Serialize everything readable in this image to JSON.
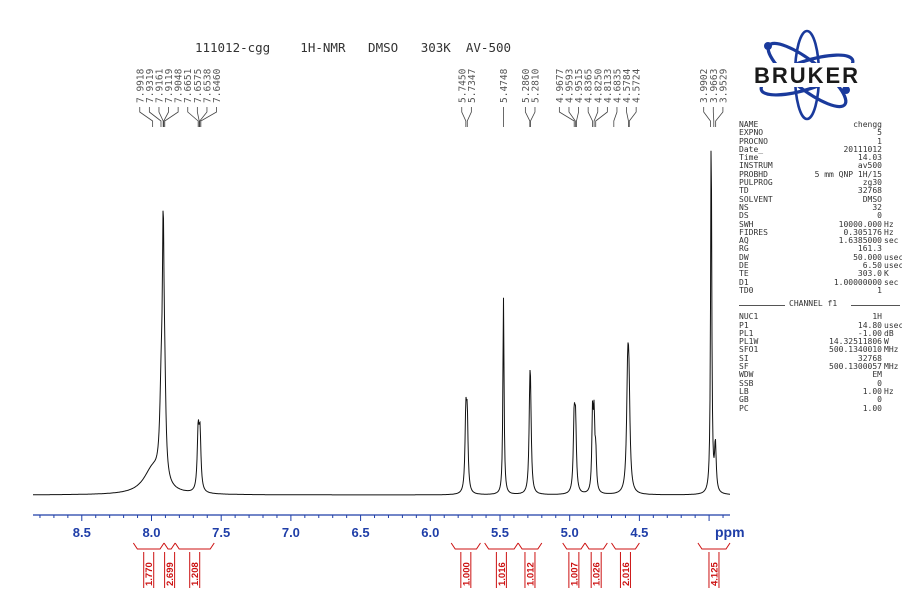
{
  "chart_data": {
    "type": "line",
    "title": "111012-cgg    1H-NMR   DMSO   303K  AV-500",
    "xlabel": "ppm",
    "xlim": [
      8.85,
      3.85
    ],
    "ylim": [
      0,
      1
    ],
    "x_ticks": [
      8.5,
      8.0,
      7.5,
      7.0,
      6.5,
      6.0,
      5.5,
      5.0,
      4.5
    ],
    "x_tick_labels": [
      "8.5",
      "8.0",
      "7.5",
      "7.0",
      "6.5",
      "6.0",
      "5.5",
      "5.0",
      "4.5"
    ],
    "grid": false,
    "baseline": 0.03,
    "peaks": [
      {
        "ppm": 7.99,
        "height": 0.07,
        "width": 0.08
      },
      {
        "ppm": 7.93,
        "height": 0.22,
        "width": 0.012
      },
      {
        "ppm": 7.916,
        "height": 0.58,
        "width": 0.007
      },
      {
        "ppm": 7.905,
        "height": 0.2,
        "width": 0.01
      },
      {
        "ppm": 7.665,
        "height": 0.16,
        "width": 0.008
      },
      {
        "ppm": 7.652,
        "height": 0.15,
        "width": 0.008
      },
      {
        "ppm": 5.745,
        "height": 0.2,
        "width": 0.007
      },
      {
        "ppm": 5.735,
        "height": 0.19,
        "width": 0.007
      },
      {
        "ppm": 5.475,
        "height": 0.54,
        "width": 0.005
      },
      {
        "ppm": 5.286,
        "height": 0.2,
        "width": 0.007
      },
      {
        "ppm": 5.281,
        "height": 0.19,
        "width": 0.007
      },
      {
        "ppm": 4.968,
        "height": 0.19,
        "width": 0.007
      },
      {
        "ppm": 4.958,
        "height": 0.18,
        "width": 0.007
      },
      {
        "ppm": 4.836,
        "height": 0.21,
        "width": 0.006
      },
      {
        "ppm": 4.825,
        "height": 0.19,
        "width": 0.006
      },
      {
        "ppm": 4.813,
        "height": 0.1,
        "width": 0.006
      },
      {
        "ppm": 4.584,
        "height": 0.28,
        "width": 0.009
      },
      {
        "ppm": 4.575,
        "height": 0.24,
        "width": 0.009
      },
      {
        "ppm": 3.985,
        "height": 1.0,
        "width": 0.005
      },
      {
        "ppm": 3.955,
        "height": 0.13,
        "width": 0.007
      }
    ],
    "peak_labels": [
      {
        "label": "7.9918",
        "ppm": 7.9918
      },
      {
        "label": "7.9319",
        "ppm": 7.9319
      },
      {
        "label": "7.9161",
        "ppm": 7.9161
      },
      {
        "label": "7.9119",
        "ppm": 7.9119
      },
      {
        "label": "7.9048",
        "ppm": 7.9048
      },
      {
        "label": "7.6651",
        "ppm": 7.6651
      },
      {
        "label": "7.6575",
        "ppm": 7.6575
      },
      {
        "label": "7.6538",
        "ppm": 7.6538
      },
      {
        "label": "7.6460",
        "ppm": 7.646
      },
      {
        "label": "5.7450",
        "ppm": 5.745
      },
      {
        "label": "5.7347",
        "ppm": 5.7347
      },
      {
        "label": "5.4748",
        "ppm": 5.4748
      },
      {
        "label": "5.2860",
        "ppm": 5.286
      },
      {
        "label": "5.2810",
        "ppm": 5.281
      },
      {
        "label": "4.9677",
        "ppm": 4.9677
      },
      {
        "label": "4.9593",
        "ppm": 4.9593
      },
      {
        "label": "4.9515",
        "ppm": 4.9515
      },
      {
        "label": "4.8365",
        "ppm": 4.8365
      },
      {
        "label": "4.8250",
        "ppm": 4.825
      },
      {
        "label": "4.8133",
        "ppm": 4.8133
      },
      {
        "label": "4.6835",
        "ppm": 4.6835
      },
      {
        "label": "4.5784",
        "ppm": 4.5784
      },
      {
        "label": "4.5724",
        "ppm": 4.5724
      },
      {
        "label": "3.9902",
        "ppm": 3.9902
      },
      {
        "label": "3.9663",
        "ppm": 3.9663
      },
      {
        "label": "3.9529",
        "ppm": 3.9529
      }
    ],
    "integrals": [
      {
        "value": "1.770",
        "from": 8.13,
        "to": 7.91
      },
      {
        "value": "2.699",
        "from": 7.91,
        "to": 7.83
      },
      {
        "value": "1.208",
        "from": 7.83,
        "to": 7.55
      },
      {
        "value": "1.000",
        "from": 5.85,
        "to": 5.64
      },
      {
        "value": "1.016",
        "from": 5.61,
        "to": 5.37
      },
      {
        "value": "1.012",
        "from": 5.37,
        "to": 5.2
      },
      {
        "value": "1.007",
        "from": 5.05,
        "to": 4.89
      },
      {
        "value": "1.026",
        "from": 4.89,
        "to": 4.73
      },
      {
        "value": "2.016",
        "from": 4.7,
        "to": 4.5
      },
      {
        "value": "4.125",
        "from": 4.08,
        "to": 3.85
      }
    ],
    "colors": {
      "spectrum": "#111111",
      "axis": "#1f3ea8",
      "integral": "#cc1111",
      "peak_label": "#555555"
    }
  },
  "logo": {
    "text": "BRUKER",
    "color": "#1a3a9c"
  },
  "params": [
    {
      "name": "NAME",
      "value": "chengg",
      "unit": ""
    },
    {
      "name": "EXPNO",
      "value": "5",
      "unit": ""
    },
    {
      "name": "PROCNO",
      "value": "1",
      "unit": ""
    },
    {
      "name": "Date_",
      "value": "20111012",
      "unit": ""
    },
    {
      "name": "Time",
      "value": "14.03",
      "unit": ""
    },
    {
      "name": "INSTRUM",
      "value": "av500",
      "unit": ""
    },
    {
      "name": "PROBHD",
      "value": "5 mm QNP 1H/15",
      "unit": ""
    },
    {
      "name": "PULPROG",
      "value": "zg30",
      "unit": ""
    },
    {
      "name": "TD",
      "value": "32768",
      "unit": ""
    },
    {
      "name": "SOLVENT",
      "value": "DMSO",
      "unit": ""
    },
    {
      "name": "NS",
      "value": "32",
      "unit": ""
    },
    {
      "name": "DS",
      "value": "0",
      "unit": ""
    },
    {
      "name": "SWH",
      "value": "10000.000",
      "unit": "Hz"
    },
    {
      "name": "FIDRES",
      "value": "0.305176",
      "unit": "Hz"
    },
    {
      "name": "AQ",
      "value": "1.6385000",
      "unit": "sec"
    },
    {
      "name": "RG",
      "value": "161.3",
      "unit": ""
    },
    {
      "name": "DW",
      "value": "50.000",
      "unit": "usec"
    },
    {
      "name": "DE",
      "value": "6.50",
      "unit": "usec"
    },
    {
      "name": "TE",
      "value": "303.0",
      "unit": "K"
    },
    {
      "name": "D1",
      "value": "1.00000000",
      "unit": "sec"
    },
    {
      "name": "TD0",
      "value": "1",
      "unit": ""
    }
  ],
  "channel_title": "CHANNEL f1",
  "channel_params": [
    {
      "name": "NUC1",
      "value": "1H",
      "unit": ""
    },
    {
      "name": "P1",
      "value": "14.80",
      "unit": "usec"
    },
    {
      "name": "PL1",
      "value": "-1.00",
      "unit": "dB"
    },
    {
      "name": "PL1W",
      "value": "14.32511806",
      "unit": "W"
    },
    {
      "name": "SFO1",
      "value": "500.1340010",
      "unit": "MHz"
    },
    {
      "name": "SI",
      "value": "32768",
      "unit": ""
    },
    {
      "name": "SF",
      "value": "500.1300057",
      "unit": "MHz"
    },
    {
      "name": "WDW",
      "value": "EM",
      "unit": ""
    },
    {
      "name": "SSB",
      "value": "0",
      "unit": ""
    },
    {
      "name": "LB",
      "value": "1.00",
      "unit": "Hz"
    },
    {
      "name": "GB",
      "value": "0",
      "unit": ""
    },
    {
      "name": "PC",
      "value": "1.00",
      "unit": ""
    }
  ]
}
